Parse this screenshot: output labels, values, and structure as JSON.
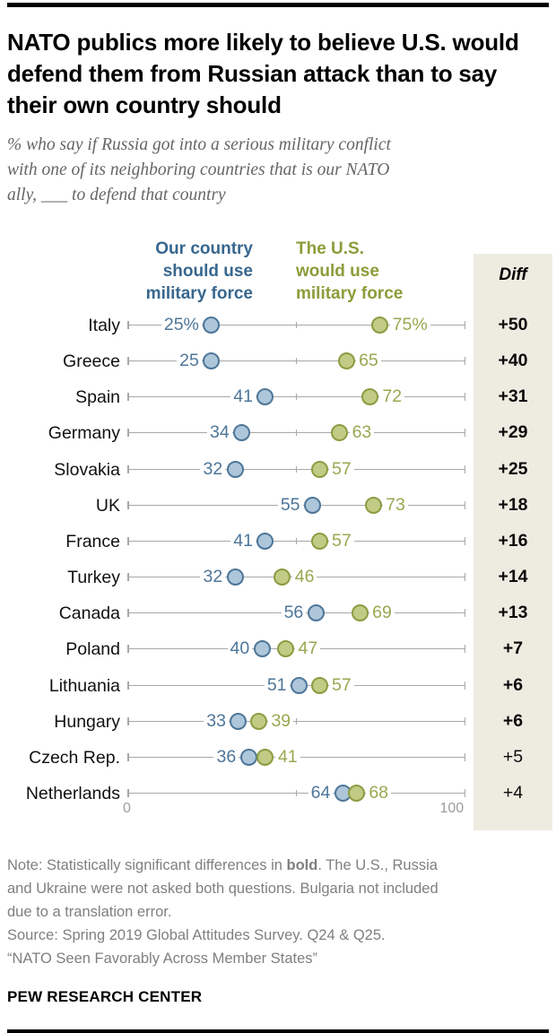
{
  "header": {
    "title": "NATO publics more likely to believe U.S. would defend them from Russian attack than to say their own country should",
    "subtitle_lines": [
      "% who say if Russia got into a serious military conflict",
      "with one of its neighboring countries that is our NATO",
      "ally, ___ to defend that country"
    ]
  },
  "chart_data": {
    "type": "scatter",
    "subtype": "dumbbell-dot-plot",
    "categories": [
      "Italy",
      "Greece",
      "Spain",
      "Germany",
      "Slovakia",
      "UK",
      "France",
      "Turkey",
      "Canada",
      "Poland",
      "Lithuania",
      "Hungary",
      "Czech Rep.",
      "Netherlands"
    ],
    "series": [
      {
        "name": "Our country should use military force",
        "legend_label": "Our country\nshould use\nmilitary force",
        "values": [
          25,
          25,
          41,
          34,
          32,
          55,
          41,
          32,
          56,
          40,
          51,
          33,
          36,
          64
        ],
        "labels": [
          "25%",
          "25",
          "41",
          "34",
          "32",
          "55",
          "41",
          "32",
          "56",
          "40",
          "51",
          "33",
          "36",
          "64"
        ],
        "text_color": "#4e7699",
        "header_color": "#38678f",
        "dot_fill": "#adc6da",
        "dot_stroke": "#4d7699"
      },
      {
        "name": "The U.S. would use military force",
        "legend_label": "The U.S.\nwould use\nmilitary force",
        "values": [
          75,
          65,
          72,
          63,
          57,
          73,
          57,
          46,
          69,
          47,
          57,
          39,
          41,
          68
        ],
        "labels": [
          "75%",
          "65",
          "72",
          "63",
          "57",
          "73",
          "57",
          "46",
          "69",
          "47",
          "57",
          "39",
          "41",
          "68"
        ],
        "text_color": "#9aa750",
        "header_color": "#8d9c3a",
        "dot_fill": "#c1cb85",
        "dot_stroke": "#8c9c41"
      }
    ],
    "diff": {
      "label": "Diff",
      "values": [
        "+50",
        "+40",
        "+31",
        "+29",
        "+25",
        "+18",
        "+16",
        "+14",
        "+13",
        "+7",
        "+6",
        "+6",
        "+5",
        "+4"
      ],
      "bold": [
        true,
        true,
        true,
        true,
        true,
        true,
        true,
        true,
        true,
        true,
        true,
        true,
        false,
        false
      ],
      "box_color": "#eeece1"
    },
    "axis": {
      "min": 0,
      "max": 100,
      "tick_labels": [
        "0",
        "100"
      ],
      "mid_tick": 50
    },
    "legend_position": "top",
    "grid": false
  },
  "notes": {
    "note_line1_pre": "Note: Statistically significant differences in ",
    "note_line1_bold": "bold",
    "note_line1_post": ". The U.S., Russia",
    "note_line2": "and Ukraine were not asked both questions. Bulgaria not included",
    "note_line3": "due to a translation error.",
    "source_line": "Source: Spring 2019 Global Attitudes Survey. Q24 & Q25.",
    "report_line": "“NATO Seen Favorably Across Member States”"
  },
  "footer": {
    "brand": "PEW RESEARCH CENTER"
  }
}
